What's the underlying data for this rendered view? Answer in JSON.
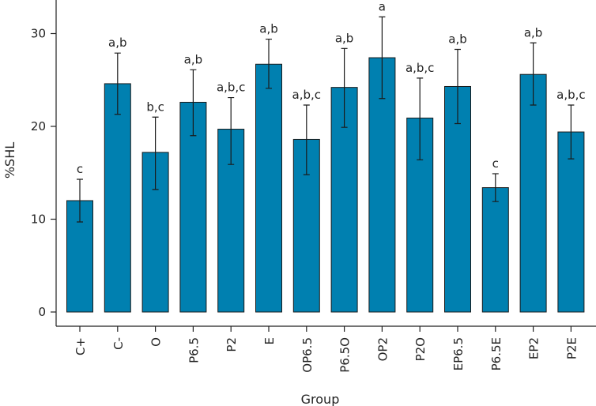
{
  "chart_data": {
    "type": "bar",
    "title": "",
    "xlabel": "Group",
    "ylabel": "%SHL",
    "ylim": [
      0,
      32
    ],
    "yticks": [
      0,
      10,
      20,
      30
    ],
    "grid": false,
    "bar_color": "#0080b0",
    "categories": [
      "C+",
      "C-",
      "O",
      "P6.5",
      "P2",
      "E",
      "OP6.5",
      "P6.5O",
      "OP2",
      "P2O",
      "EP6.5",
      "P6.5E",
      "EP2",
      "P2E"
    ],
    "values": [
      12.0,
      24.6,
      17.2,
      22.6,
      19.7,
      26.7,
      18.6,
      24.2,
      27.4,
      20.9,
      24.3,
      13.4,
      25.6,
      19.4
    ],
    "error_low": [
      9.7,
      21.3,
      13.2,
      19.0,
      15.9,
      24.1,
      14.8,
      19.9,
      23.0,
      16.4,
      20.3,
      11.9,
      22.3,
      16.5
    ],
    "error_high": [
      14.3,
      27.9,
      21.0,
      26.1,
      23.1,
      29.4,
      22.3,
      28.4,
      31.8,
      25.2,
      28.3,
      14.9,
      29.0,
      22.3
    ],
    "significance_labels": [
      "c",
      "a,b",
      "b,c",
      "a,b",
      "a,b,c",
      "a,b",
      "a,b,c",
      "a,b",
      "a",
      "a,b,c",
      "a,b",
      "c",
      "a,b",
      "a,b,c"
    ]
  }
}
